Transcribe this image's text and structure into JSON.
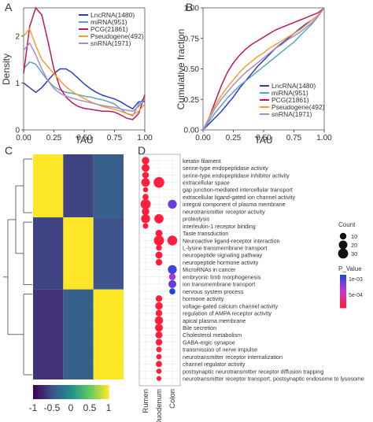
{
  "chart_data": [
    {
      "panel": "A",
      "type": "line",
      "xlabel": "TAU",
      "ylabel": "Density",
      "xlim": [
        0,
        1
      ],
      "ylim": [
        0,
        2.6
      ],
      "xticks": [
        "0.00",
        "0.25",
        "0.50",
        "0.75",
        "1.00"
      ],
      "yticks": [
        "0",
        "1",
        "2"
      ],
      "legend_position": "top-right",
      "series": [
        {
          "name": "LncRNA(1480)",
          "color": "#2b3fb8",
          "x": [
            0.0,
            0.05,
            0.1,
            0.15,
            0.2,
            0.25,
            0.3,
            0.35,
            0.4,
            0.45,
            0.5,
            0.55,
            0.6,
            0.65,
            0.7,
            0.75,
            0.8,
            0.85,
            0.9,
            0.95,
            1.0
          ],
          "y": [
            1.0,
            0.9,
            0.8,
            0.9,
            1.05,
            1.2,
            1.3,
            1.3,
            1.22,
            1.1,
            0.98,
            0.88,
            0.8,
            0.74,
            0.7,
            0.66,
            0.6,
            0.52,
            0.45,
            0.6,
            0.6
          ]
        },
        {
          "name": "miRNA(951)",
          "color": "#5aa0c8",
          "x": [
            0.0,
            0.05,
            0.1,
            0.15,
            0.2,
            0.25,
            0.3,
            0.35,
            0.4,
            0.45,
            0.5,
            0.55,
            0.6,
            0.65,
            0.7,
            0.75,
            0.8,
            0.85,
            0.9,
            0.95,
            1.0
          ],
          "y": [
            1.3,
            1.45,
            1.4,
            1.22,
            1.05,
            0.92,
            0.85,
            0.8,
            0.78,
            0.75,
            0.72,
            0.7,
            0.67,
            0.64,
            0.6,
            0.55,
            0.45,
            0.35,
            0.3,
            0.55,
            0.7
          ]
        },
        {
          "name": "PCG(21861)",
          "color": "#c2185b",
          "x": [
            0.0,
            0.05,
            0.1,
            0.15,
            0.2,
            0.25,
            0.3,
            0.35,
            0.4,
            0.45,
            0.5,
            0.55,
            0.6,
            0.65,
            0.7,
            0.75,
            0.8,
            0.85,
            0.9,
            0.95,
            1.0
          ],
          "y": [
            1.2,
            2.2,
            2.6,
            2.45,
            1.9,
            1.3,
            0.9,
            0.7,
            0.58,
            0.5,
            0.46,
            0.44,
            0.42,
            0.4,
            0.4,
            0.38,
            0.32,
            0.25,
            0.22,
            0.35,
            0.75
          ]
        },
        {
          "name": "Pseudogene(492)",
          "color": "#f0a030",
          "x": [
            0.0,
            0.05,
            0.1,
            0.15,
            0.2,
            0.25,
            0.3,
            0.35,
            0.4,
            0.45,
            0.5,
            0.55,
            0.6,
            0.65,
            0.7,
            0.75,
            0.8,
            0.85,
            0.9,
            0.95,
            1.0
          ],
          "y": [
            2.0,
            2.15,
            1.8,
            1.5,
            1.35,
            1.2,
            1.05,
            0.92,
            0.82,
            0.74,
            0.67,
            0.6,
            0.55,
            0.5,
            0.47,
            0.44,
            0.4,
            0.35,
            0.32,
            0.4,
            0.55
          ]
        },
        {
          "name": "snRNA(1971)",
          "color": "#a98cc8",
          "x": [
            0.0,
            0.05,
            0.1,
            0.15,
            0.2,
            0.25,
            0.3,
            0.35,
            0.4,
            0.45,
            0.5,
            0.55,
            0.6,
            0.65,
            0.7,
            0.75,
            0.8,
            0.85,
            0.9,
            0.95,
            1.0
          ],
          "y": [
            1.7,
            1.85,
            1.6,
            1.3,
            1.05,
            0.88,
            0.78,
            0.72,
            0.68,
            0.64,
            0.61,
            0.58,
            0.55,
            0.52,
            0.5,
            0.48,
            0.45,
            0.42,
            0.4,
            0.5,
            0.65
          ]
        }
      ]
    },
    {
      "panel": "B",
      "type": "line",
      "xlabel": "TAU",
      "ylabel": "Cumulative fraction",
      "xlim": [
        0,
        1
      ],
      "ylim": [
        0,
        1
      ],
      "xticks": [
        "0.00",
        "0.25",
        "0.50",
        "0.75",
        "1.00"
      ],
      "yticks": [
        "0.00",
        "0.25",
        "0.50",
        "0.75",
        "1.00"
      ],
      "legend_position": "bottom-right",
      "series": [
        {
          "name": "LncRNA(1480)",
          "color": "#2b3fb8",
          "x": [
            0.0,
            0.05,
            0.1,
            0.15,
            0.2,
            0.25,
            0.3,
            0.35,
            0.4,
            0.45,
            0.5,
            0.55,
            0.6,
            0.65,
            0.7,
            0.75,
            0.8,
            0.85,
            0.9,
            0.95,
            1.0
          ],
          "y": [
            0.0,
            0.05,
            0.1,
            0.15,
            0.21,
            0.27,
            0.34,
            0.4,
            0.46,
            0.52,
            0.57,
            0.62,
            0.67,
            0.71,
            0.75,
            0.79,
            0.83,
            0.87,
            0.9,
            0.94,
            1.0
          ]
        },
        {
          "name": "miRNA(951)",
          "color": "#5aa0c8",
          "x": [
            0.0,
            0.05,
            0.1,
            0.15,
            0.2,
            0.25,
            0.3,
            0.35,
            0.4,
            0.45,
            0.5,
            0.55,
            0.6,
            0.65,
            0.7,
            0.75,
            0.8,
            0.85,
            0.9,
            0.95,
            1.0
          ],
          "y": [
            0.0,
            0.07,
            0.14,
            0.2,
            0.26,
            0.31,
            0.36,
            0.4,
            0.44,
            0.48,
            0.52,
            0.56,
            0.6,
            0.64,
            0.68,
            0.72,
            0.77,
            0.82,
            0.87,
            0.93,
            1.0
          ]
        },
        {
          "name": "PCG(21861)",
          "color": "#c2185b",
          "x": [
            0.0,
            0.05,
            0.1,
            0.15,
            0.2,
            0.25,
            0.3,
            0.35,
            0.4,
            0.45,
            0.5,
            0.55,
            0.6,
            0.65,
            0.7,
            0.75,
            0.8,
            0.85,
            0.9,
            0.95,
            1.0
          ],
          "y": [
            0.0,
            0.1,
            0.23,
            0.36,
            0.47,
            0.55,
            0.61,
            0.66,
            0.7,
            0.73,
            0.76,
            0.79,
            0.82,
            0.84,
            0.86,
            0.88,
            0.9,
            0.92,
            0.94,
            0.96,
            1.0
          ]
        },
        {
          "name": "Pseudogene(492)",
          "color": "#f0a030",
          "x": [
            0.0,
            0.05,
            0.1,
            0.15,
            0.2,
            0.25,
            0.3,
            0.35,
            0.4,
            0.45,
            0.5,
            0.55,
            0.6,
            0.65,
            0.7,
            0.75,
            0.8,
            0.85,
            0.9,
            0.95,
            1.0
          ],
          "y": [
            0.0,
            0.1,
            0.2,
            0.28,
            0.35,
            0.41,
            0.47,
            0.52,
            0.56,
            0.6,
            0.63,
            0.67,
            0.7,
            0.73,
            0.76,
            0.79,
            0.82,
            0.86,
            0.9,
            0.94,
            1.0
          ]
        },
        {
          "name": "snRNA(1971)",
          "color": "#a98cc8",
          "x": [
            0.0,
            0.05,
            0.1,
            0.15,
            0.2,
            0.25,
            0.3,
            0.35,
            0.4,
            0.45,
            0.5,
            0.55,
            0.6,
            0.65,
            0.7,
            0.75,
            0.8,
            0.85,
            0.9,
            0.95,
            1.0
          ],
          "y": [
            0.0,
            0.09,
            0.18,
            0.25,
            0.31,
            0.37,
            0.42,
            0.47,
            0.51,
            0.55,
            0.59,
            0.63,
            0.67,
            0.7,
            0.74,
            0.77,
            0.8,
            0.84,
            0.88,
            0.93,
            1.0
          ]
        }
      ]
    },
    {
      "panel": "C",
      "type": "heatmap",
      "columns": 3,
      "clusters": [
        {
          "rows_fraction": 0.28,
          "values": [
            1.0,
            -0.6,
            -0.4
          ]
        },
        {
          "rows_fraction": 0.32,
          "values": [
            -0.6,
            1.0,
            -0.5
          ]
        },
        {
          "rows_fraction": 0.4,
          "values": [
            -0.7,
            -0.4,
            1.0
          ]
        }
      ],
      "colorbar": {
        "ticks": [
          "-1",
          "-0.5",
          "0",
          "0.5",
          "1"
        ],
        "colors": [
          "#440154",
          "#3b528b",
          "#21908d",
          "#5dc863",
          "#fde725"
        ]
      }
    },
    {
      "panel": "D",
      "type": "scatter",
      "xcategories": [
        "Rumen",
        "Duodenum",
        "Colon"
      ],
      "terms": [
        "keratin filament",
        "serine-type endopeptidase activity",
        "serine-type endopeptidase inhibitor activity",
        "extracellular space",
        "gap junction-mediated intercellular transport",
        "extracellular ligand-gated ion channel activity",
        "integral component of plasma membrane",
        "neurotransmitter receptor activity",
        "proteolysis",
        "interleukin-1 receptor binding",
        "Taste transduction",
        "Neuroactive ligand-receptor interaction",
        "L-lysine transmembrane transport",
        "neuropeptide signaling pathway",
        "neuropeptide hormone activity",
        "MicroRNAs in cancer",
        "embryonic limb morphogenesis",
        "ion transmembrane transport",
        "nervous system process",
        "hormone activity",
        "voltage-gated calcium channel activity",
        "regulation of AMPA receptor activity",
        "apical plasma membrane",
        "Bile secretion",
        "Cholesterol metabolism",
        "GABA-ergic synapse",
        "transmission of nerve impulse",
        "neurotransmitter receptor internalization",
        "channel regulator activity",
        "postsynaptic neurotransmitter receptor diffusion trapping",
        "neurotransmitter receptor transport, postsynaptic endosome to lysosome"
      ],
      "points": [
        {
          "term": 0,
          "cat": 0,
          "count": 14,
          "p": 0.0
        },
        {
          "term": 1,
          "cat": 0,
          "count": 16,
          "p": 0.0
        },
        {
          "term": 2,
          "cat": 0,
          "count": 10,
          "p": 0.0
        },
        {
          "term": 3,
          "cat": 0,
          "count": 20,
          "p": 0.0
        },
        {
          "term": 3,
          "cat": 1,
          "count": 34,
          "p": 0.0
        },
        {
          "term": 4,
          "cat": 0,
          "count": 5,
          "p": 0.0
        },
        {
          "term": 5,
          "cat": 0,
          "count": 8,
          "p": 0.0
        },
        {
          "term": 6,
          "cat": 0,
          "count": 30,
          "p": 0.0
        },
        {
          "term": 6,
          "cat": 2,
          "count": 22,
          "p": 0.0008
        },
        {
          "term": 7,
          "cat": 0,
          "count": 14,
          "p": 0.0
        },
        {
          "term": 8,
          "cat": 0,
          "count": 22,
          "p": 0.0
        },
        {
          "term": 8,
          "cat": 1,
          "count": 24,
          "p": 0.0
        },
        {
          "term": 9,
          "cat": 0,
          "count": 6,
          "p": 0.0
        },
        {
          "term": 10,
          "cat": 1,
          "count": 12,
          "p": 0.0
        },
        {
          "term": 11,
          "cat": 1,
          "count": 30,
          "p": 0.0
        },
        {
          "term": 11,
          "cat": 2,
          "count": 28,
          "p": 0.0
        },
        {
          "term": 12,
          "cat": 1,
          "count": 7,
          "p": 0.0
        },
        {
          "term": 13,
          "cat": 1,
          "count": 12,
          "p": 0.0
        },
        {
          "term": 14,
          "cat": 1,
          "count": 10,
          "p": 0.0
        },
        {
          "term": 15,
          "cat": 2,
          "count": 22,
          "p": 0.0009
        },
        {
          "term": 16,
          "cat": 2,
          "count": 10,
          "p": 0.0006
        },
        {
          "term": 17,
          "cat": 2,
          "count": 16,
          "p": 0.0008
        },
        {
          "term": 18,
          "cat": 2,
          "count": 8,
          "p": 0.001
        },
        {
          "term": 19,
          "cat": 1,
          "count": 10,
          "p": 0.0
        },
        {
          "term": 20,
          "cat": 1,
          "count": 14,
          "p": 0.0
        },
        {
          "term": 21,
          "cat": 1,
          "count": 10,
          "p": 0.0
        },
        {
          "term": 22,
          "cat": 1,
          "count": 18,
          "p": 0.0
        },
        {
          "term": 23,
          "cat": 1,
          "count": 16,
          "p": 0.0
        },
        {
          "term": 24,
          "cat": 1,
          "count": 12,
          "p": 0.0
        },
        {
          "term": 25,
          "cat": 1,
          "count": 10,
          "p": 0.0
        },
        {
          "term": 26,
          "cat": 1,
          "count": 6,
          "p": 0.0
        },
        {
          "term": 27,
          "cat": 1,
          "count": 5,
          "p": 0.0
        },
        {
          "term": 28,
          "cat": 1,
          "count": 8,
          "p": 0.0
        },
        {
          "term": 29,
          "cat": 1,
          "count": 5,
          "p": 0.0
        },
        {
          "term": 30,
          "cat": 1,
          "count": 4,
          "p": 0.0
        }
      ],
      "count_legend": {
        "title": "Count",
        "values": [
          10,
          20,
          30
        ]
      },
      "p_legend": {
        "title": "P_Value",
        "ticks": [
          "1e-03",
          "5e-04"
        ],
        "colors": [
          "#2244dd",
          "#cc33cc",
          "#ff1f3c"
        ]
      }
    }
  ]
}
